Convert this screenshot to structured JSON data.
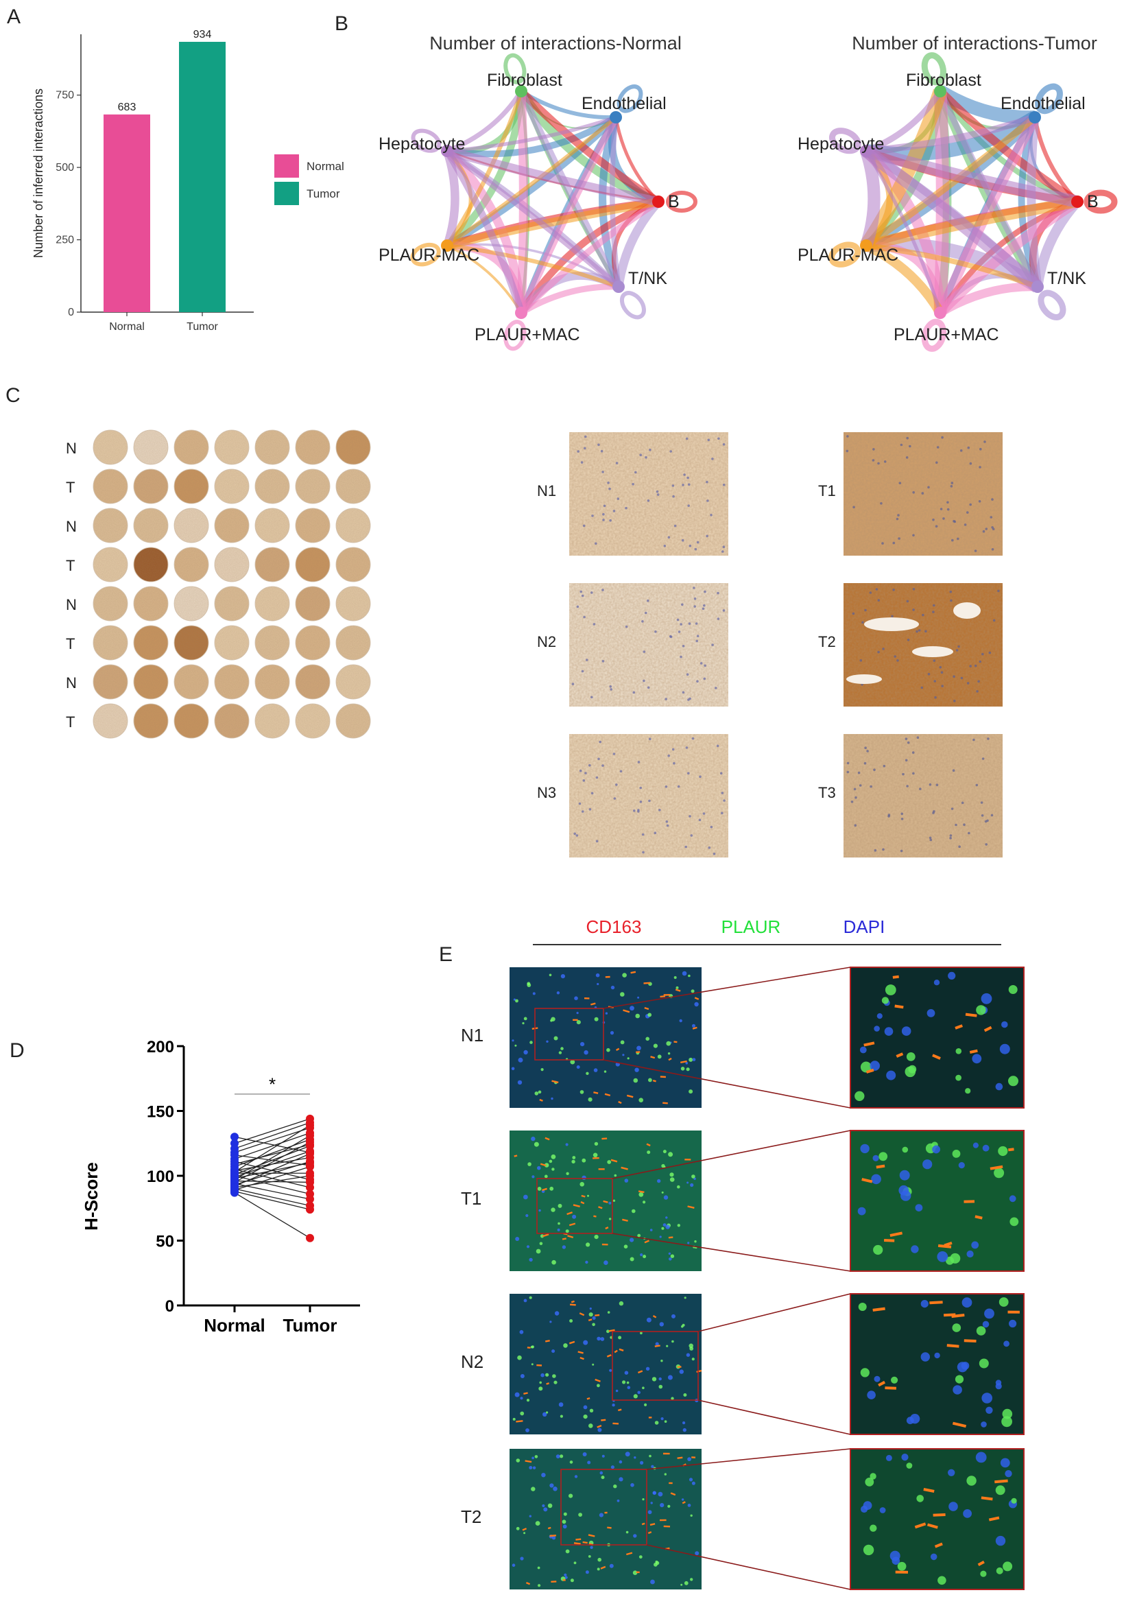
{
  "panels": {
    "a": "A",
    "b": "B",
    "c": "C",
    "d": "D",
    "e": "E"
  },
  "colors": {
    "normal": "#e84d96",
    "tumor": "#12a083",
    "dot_normal": "#1f2fe0",
    "dot_tumor": "#e0141a"
  },
  "chart_data": [
    {
      "type": "bar",
      "categories": [
        "Normal",
        "Tumor"
      ],
      "values": [
        683,
        934
      ],
      "ylabel": "Number of inferred interactions",
      "ylim": [
        0,
        960
      ],
      "yticks": [
        0,
        250,
        500,
        750
      ],
      "legend": [
        {
          "name": "Normal",
          "color": "#e84d96"
        },
        {
          "name": "Tumor",
          "color": "#12a083"
        }
      ],
      "legend_position": "right"
    },
    {
      "type": "scatter",
      "categories": [
        "Normal",
        "Tumor"
      ],
      "ylabel": "H-Score",
      "ylim": [
        0,
        200
      ],
      "yticks": [
        0,
        50,
        100,
        150,
        200
      ],
      "significance": "*",
      "pairs": [
        [
          130,
          118
        ],
        [
          125,
          144
        ],
        [
          121,
          141
        ],
        [
          118,
          137
        ],
        [
          116,
          108
        ],
        [
          113,
          133
        ],
        [
          111,
          97
        ],
        [
          109,
          124
        ],
        [
          107,
          128
        ],
        [
          105,
          91
        ],
        [
          104,
          114
        ],
        [
          103,
          139
        ],
        [
          102,
          102
        ],
        [
          101,
          123
        ],
        [
          100,
          86
        ],
        [
          99,
          119
        ],
        [
          98,
          110
        ],
        [
          97,
          131
        ],
        [
          96,
          95
        ],
        [
          95,
          126
        ],
        [
          94,
          82
        ],
        [
          93,
          111
        ],
        [
          92,
          117
        ],
        [
          91,
          100
        ],
        [
          90,
          77
        ],
        [
          89,
          107
        ],
        [
          88,
          74
        ],
        [
          87,
          52
        ]
      ]
    }
  ],
  "networks": {
    "titles": [
      "Number of interactions-Normal",
      "Number of interactions-Tumor"
    ],
    "nodes": [
      {
        "name": "Fibroblast",
        "color": "#5fbf5f"
      },
      {
        "name": "Endothelial",
        "color": "#3a7fc1"
      },
      {
        "name": "B",
        "color": "#e41a1c"
      },
      {
        "name": "T/NK",
        "color": "#a98cd0"
      },
      {
        "name": "PLAUR+MAC",
        "color": "#f07ec0"
      },
      {
        "name": "PLAUR-MAC",
        "color": "#f39c1e"
      },
      {
        "name": "Hepatocyte",
        "color": "#b07cc6"
      }
    ]
  },
  "tma": {
    "row_labels": [
      "N",
      "T",
      "N",
      "T",
      "N",
      "T",
      "N",
      "T"
    ],
    "zoom_labels_left": [
      "N1",
      "N2",
      "N3"
    ],
    "zoom_labels_right": [
      "T1",
      "T2",
      "T3"
    ]
  },
  "if_panel": {
    "channels": [
      {
        "name": "CD163",
        "color": "#e8202a"
      },
      {
        "name": "PLAUR",
        "color": "#22e03a"
      },
      {
        "name": "DAPI",
        "color": "#2a2ad8"
      }
    ],
    "row_labels": [
      "N1",
      "T1",
      "N2",
      "T2"
    ]
  }
}
